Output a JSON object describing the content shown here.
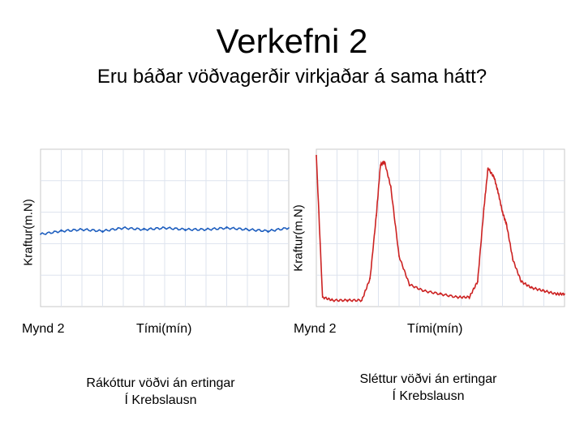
{
  "page": {
    "title": "Verkefni 2",
    "subtitle": "Eru báðar vöðvagerðir virkjaðar á sama hátt?"
  },
  "panels": [
    {
      "ylabel": "Kraftur(m.N)",
      "figure_label": "Mynd 2",
      "xlabel": "Tími(mín)",
      "caption_line1": "Rákóttur vöðvi án ertingar",
      "caption_line2": "Í Krebslausn"
    },
    {
      "ylabel": "Kraftur(m.N)",
      "figure_label": "Mynd 2",
      "xlabel": "Tími(mín)",
      "caption_line1": "Sléttur vöðvi án ertingar",
      "caption_line2": "Í Krebslausn"
    }
  ],
  "chart_data": [
    {
      "type": "line",
      "xlabel": "Tími(mín)",
      "ylabel": "Kraftur(m.N)",
      "ylim": [
        0,
        50
      ],
      "xlim": [
        0,
        12
      ],
      "grid": true,
      "color": "#1f5fbf",
      "series": [
        {
          "x": [
            0,
            1,
            2,
            3,
            4,
            5,
            6,
            7,
            8,
            9,
            10,
            11,
            12
          ],
          "values": [
            23,
            24,
            24.5,
            24,
            25,
            24.5,
            25,
            24.5,
            24.5,
            25,
            24.5,
            24,
            25
          ]
        }
      ]
    },
    {
      "type": "line",
      "xlabel": "Tími(mín)",
      "ylabel": "Kraftur(m.N)",
      "ylim": [
        0,
        50
      ],
      "xlim": [
        0,
        12
      ],
      "grid": true,
      "color": "#cc2222",
      "series": [
        {
          "x": [
            0,
            0.3,
            0.8,
            1.5,
            2.2,
            2.6,
            2.9,
            3.1,
            3.3,
            3.6,
            4.0,
            4.5,
            5.2,
            6.0,
            6.8,
            7.4,
            7.8,
            8.1,
            8.3,
            8.6,
            8.8,
            9.0,
            9.2,
            9.5,
            9.9,
            10.4,
            11.0,
            11.6,
            12
          ],
          "values": [
            48,
            3,
            2,
            2,
            2,
            9,
            29,
            45,
            46,
            38,
            16,
            7,
            5,
            4,
            3,
            3,
            8,
            31,
            44,
            41,
            36,
            30,
            26,
            15,
            8,
            6,
            5,
            4,
            4
          ]
        }
      ]
    }
  ]
}
